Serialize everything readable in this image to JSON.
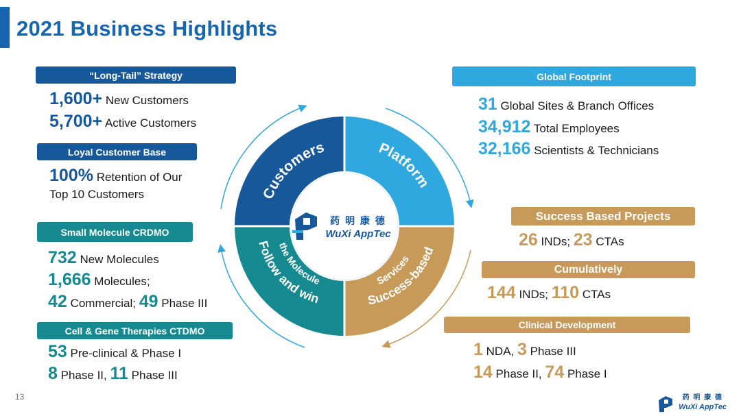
{
  "title": "2021 Business Highlights",
  "page_number": "13",
  "left": {
    "long_tail": {
      "label": "“Long-Tail” Strategy",
      "new_customers_num": "1,600+",
      "new_customers_text": "New Customers",
      "active_customers_num": "5,700+",
      "active_customers_text": "Active Customers"
    },
    "loyal": {
      "label": "Loyal Customer Base",
      "retention_num": "100%",
      "retention_text": "Retention of Our",
      "retention_text2": "Top 10 Customers"
    },
    "small_molecule": {
      "label": "Small Molecule CRDMO",
      "new_molecules_num": "732",
      "new_molecules_text": "New Molecules",
      "molecules_num": "1,666",
      "molecules_text": "Molecules;",
      "commercial_num": "42",
      "commercial_text": "Commercial;",
      "phase3_num": "49",
      "phase3_text": "Phase III"
    },
    "cgt": {
      "label": "Cell & Gene Therapies CTDMO",
      "preclinical_num": "53",
      "preclinical_text": "Pre-clinical & Phase I",
      "phase2_num": "8",
      "phase2_text": "Phase II,",
      "phase3_num": "11",
      "phase3_text": "Phase III"
    }
  },
  "right": {
    "global": {
      "label": "Global Footprint",
      "sites_num": "31",
      "sites_text": "Global Sites & Branch Offices",
      "employees_num": "34,912",
      "employees_text": "Total Employees",
      "scientists_num": "32,166",
      "scientists_text": "Scientists & Technicians"
    },
    "success": {
      "label": "Success Based Projects",
      "inds_num": "26",
      "inds_text": "INDs;",
      "ctas_num": "23",
      "ctas_text": "CTAs"
    },
    "cumulative": {
      "label": "Cumulatively",
      "inds_num": "144",
      "inds_text": "INDs;",
      "ctas_num": "110",
      "ctas_text": "CTAs"
    },
    "clinical": {
      "label": "Clinical Development",
      "nda_num": "1",
      "nda_text": "NDA,",
      "phase3_num": "3",
      "phase3_text": "Phase III",
      "phase2_num": "14",
      "phase2_text": "Phase II,",
      "phase1_num": "74",
      "phase1_text": "Phase I"
    }
  },
  "wheel": {
    "customers": "Customers",
    "platform": "Platform",
    "follow1": "Follow and win",
    "follow2": "the Molecule",
    "success1": "Success-based",
    "success2": "Services",
    "logo_cn": "药 明 康 德",
    "logo_en": "WuXi AppTec"
  },
  "footer_logo": {
    "cn": "药 明 康 德",
    "en": "WuXi AppTec"
  },
  "colors": {
    "navy": "#17589a",
    "light_blue": "#2fa7df",
    "teal": "#168a90",
    "gold": "#c79a5a"
  }
}
